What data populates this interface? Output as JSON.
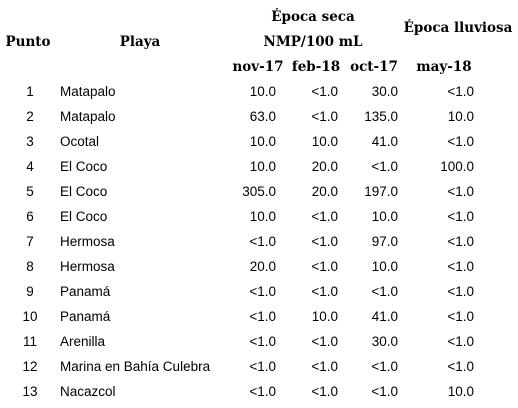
{
  "headers": {
    "punto": "Punto",
    "playa": "Playa",
    "epoca_seca": "Época seca",
    "unit": "NMP/100 mL",
    "epoca_lluviosa": "Época lluviosa",
    "dates": [
      "nov-17",
      "feb-18",
      "oct-17",
      "may-18"
    ]
  },
  "rows": [
    {
      "punto": "1",
      "playa": "Matapalo",
      "v": [
        "10.0",
        "<1.0",
        "30.0",
        "<1.0"
      ]
    },
    {
      "punto": "2",
      "playa": "Matapalo",
      "v": [
        "63.0",
        "<1.0",
        "135.0",
        "10.0"
      ]
    },
    {
      "punto": "3",
      "playa": "Ocotal",
      "v": [
        "10.0",
        "10.0",
        "41.0",
        "<1.0"
      ]
    },
    {
      "punto": "4",
      "playa": "El Coco",
      "v": [
        "10.0",
        "20.0",
        "<1.0",
        "100.0"
      ]
    },
    {
      "punto": "5",
      "playa": "El Coco",
      "v": [
        "305.0",
        "20.0",
        "197.0",
        "<1.0"
      ]
    },
    {
      "punto": "6",
      "playa": "El Coco",
      "v": [
        "10.0",
        "<1.0",
        "10.0",
        "<1.0"
      ]
    },
    {
      "punto": "7",
      "playa": "Hermosa",
      "v": [
        "<1.0",
        "<1.0",
        "97.0",
        "<1.0"
      ]
    },
    {
      "punto": "8",
      "playa": "Hermosa",
      "v": [
        "20.0",
        "<1.0",
        "10.0",
        "<1.0"
      ]
    },
    {
      "punto": "9",
      "playa": "Panamá",
      "v": [
        "<1.0",
        "<1.0",
        "<1.0",
        "<1.0"
      ]
    },
    {
      "punto": "10",
      "playa": "Panamá",
      "v": [
        "<1.0",
        "10.0",
        "41.0",
        "<1.0"
      ]
    },
    {
      "punto": "11",
      "playa": "Arenilla",
      "v": [
        "<1.0",
        "<1.0",
        "30.0",
        "<1.0"
      ]
    },
    {
      "punto": "12",
      "playa": "Marina en Bahía Culebra",
      "v": [
        "<1.0",
        "<1.0",
        "<1.0",
        "<1.0"
      ]
    },
    {
      "punto": "13",
      "playa": "Nacazcol",
      "v": [
        "<1.0",
        "<1.0",
        "<1.0",
        "10.0"
      ]
    }
  ]
}
